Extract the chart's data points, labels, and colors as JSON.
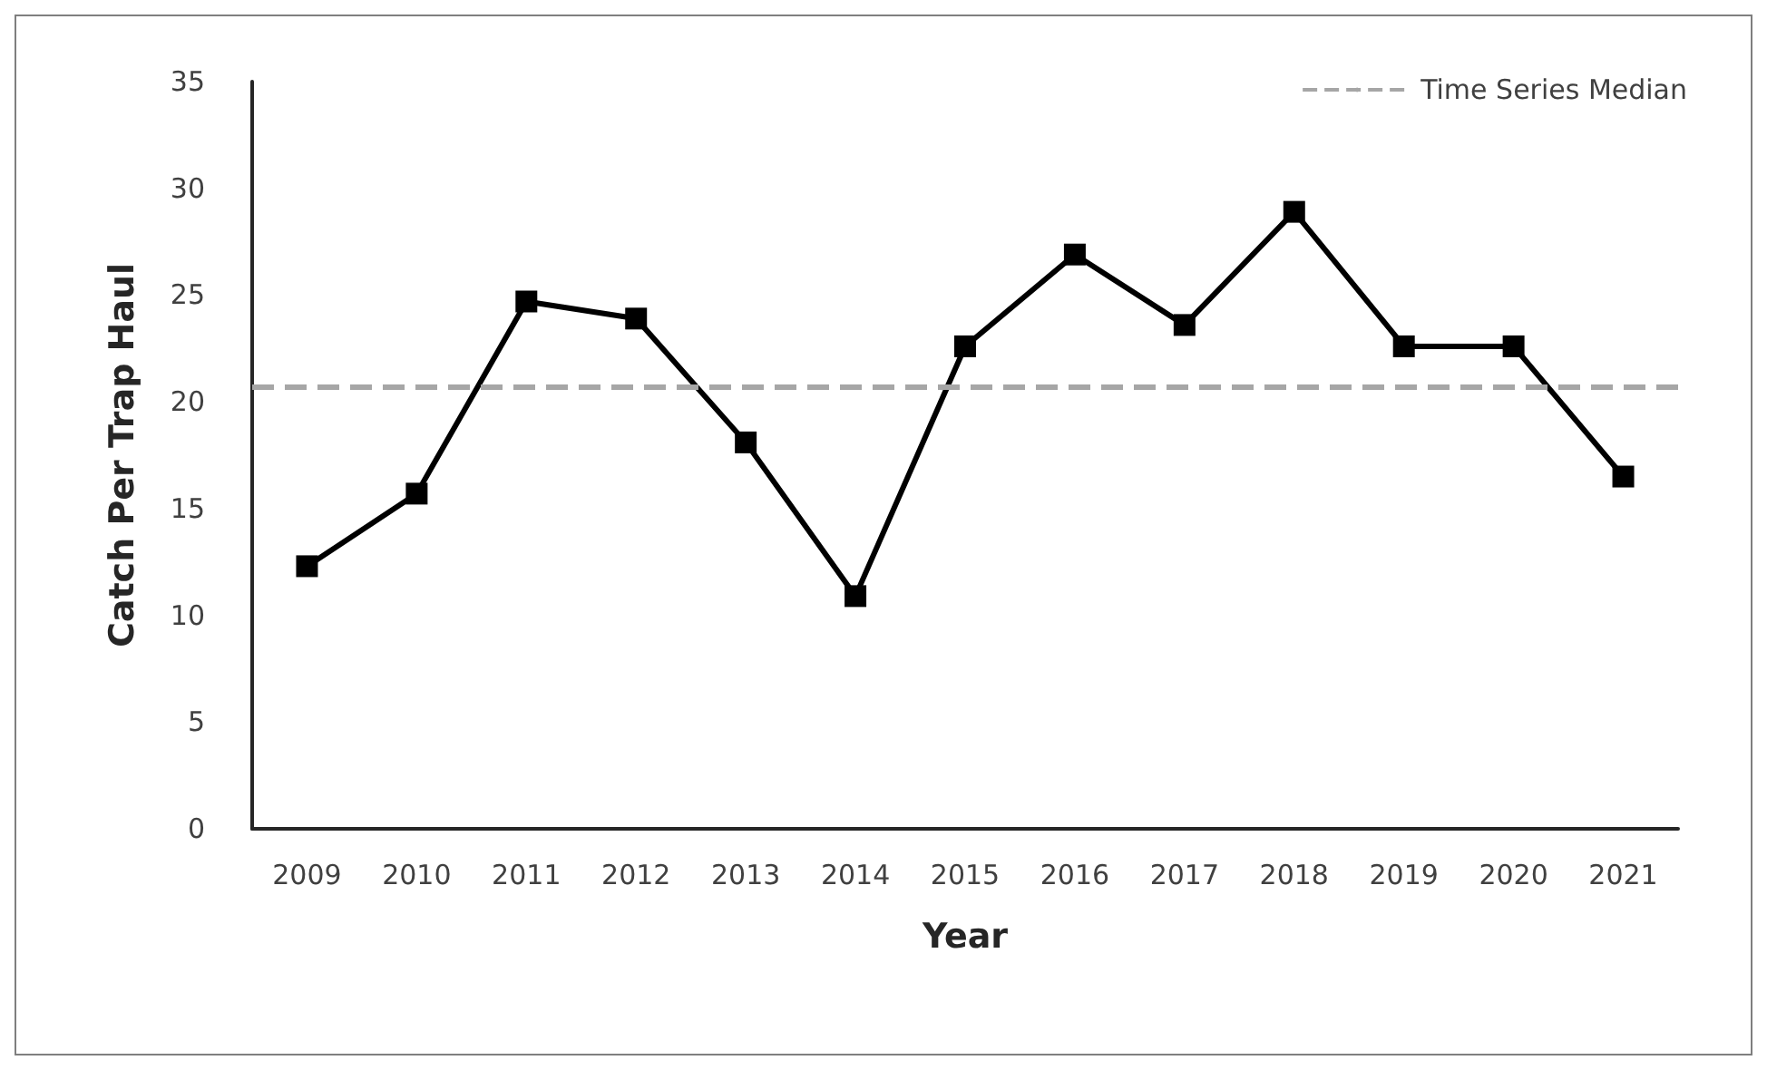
{
  "chart_data": {
    "type": "line",
    "xlabel": "Year",
    "ylabel": "Catch Per Trap Haul",
    "categories": [
      "2009",
      "2010",
      "2011",
      "2012",
      "2013",
      "2014",
      "2015",
      "2016",
      "2017",
      "2018",
      "2019",
      "2020",
      "2021"
    ],
    "series": [
      {
        "color": "#000000",
        "values": [
          12.3,
          15.7,
          24.7,
          23.9,
          18.1,
          10.9,
          22.6,
          26.9,
          23.6,
          28.9,
          22.6,
          22.6,
          16.5
        ]
      }
    ],
    "ylim": [
      0,
      35
    ],
    "yticks": [
      0,
      5,
      10,
      15,
      20,
      25,
      30,
      35
    ],
    "ref_lines": [
      {
        "axis": "y",
        "value": 20.7,
        "label": "Time Series Median",
        "color": "#a6a6a6",
        "line_style": "dashed"
      }
    ],
    "marker": "square",
    "line_style": "solid",
    "grid": false,
    "legend": "top right"
  }
}
